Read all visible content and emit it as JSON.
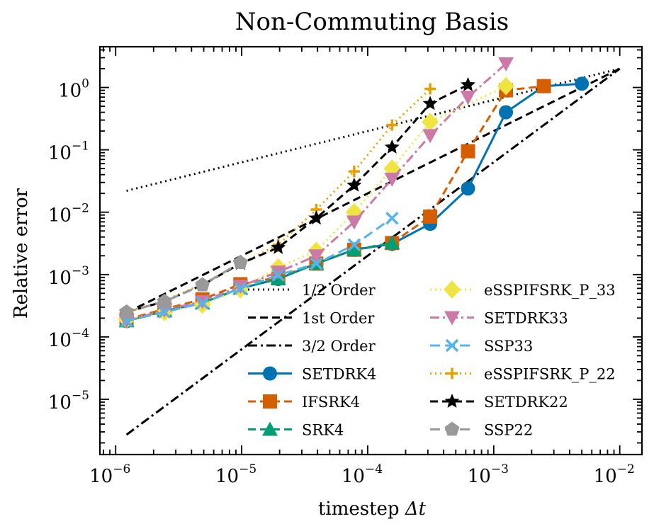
{
  "chart_data": {
    "type": "line",
    "title": "Non-Commuting Basis",
    "xlabel_prefix": "timestep ",
    "xlabel_var": "Δt",
    "ylabel": "Relative error",
    "xscale": "log",
    "yscale": "log",
    "xlim": [
      7.5e-07,
      0.015
    ],
    "ylim": [
      1.3e-06,
      4.5
    ],
    "grid": false,
    "legend_location": "lower-center, two columns",
    "xticks": [
      {
        "value": 1e-06,
        "base": "10",
        "exp": "−6"
      },
      {
        "value": 1e-05,
        "base": "10",
        "exp": "−5"
      },
      {
        "value": 0.0001,
        "base": "10",
        "exp": "−4"
      },
      {
        "value": 0.001,
        "base": "10",
        "exp": "−3"
      },
      {
        "value": 0.01,
        "base": "10",
        "exp": "−2"
      }
    ],
    "yticks": [
      {
        "value": 1e-05,
        "base": "10",
        "exp": "−5"
      },
      {
        "value": 0.0001,
        "base": "10",
        "exp": "−4"
      },
      {
        "value": 0.001,
        "base": "10",
        "exp": "−3"
      },
      {
        "value": 0.01,
        "base": "10",
        "exp": "−2"
      },
      {
        "value": 0.1,
        "base": "10",
        "exp": "−1"
      },
      {
        "value": 1,
        "base": "10",
        "exp": "0"
      }
    ],
    "series": [
      {
        "name": "1/2 Order",
        "color": "#000000",
        "dash": "2,5",
        "width": 3,
        "marker": "none",
        "x": [
          1.22e-06,
          0.01
        ],
        "y": [
          0.022,
          2.0
        ]
      },
      {
        "name": "1st Order",
        "color": "#000000",
        "dash": "11,6",
        "width": 3,
        "marker": "none",
        "x": [
          1.22e-06,
          0.01
        ],
        "y": [
          0.000244,
          2.0
        ]
      },
      {
        "name": "3/2 Order",
        "color": "#000000",
        "dash": "13,5,3,5",
        "width": 3,
        "marker": "none",
        "x": [
          1.22e-06,
          0.01
        ],
        "y": [
          2.7e-06,
          2.0
        ]
      },
      {
        "name": "SETDRK4",
        "color": "#0072B2",
        "dash": "",
        "width": 3,
        "marker": "circle",
        "x": [
          1.22e-06,
          2.44e-06,
          4.88e-06,
          9.77e-06,
          1.95e-05,
          3.91e-05,
          7.81e-05,
          0.000156,
          0.000313,
          0.000625,
          0.00125,
          0.0025,
          0.005
        ],
        "y": [
          0.00018,
          0.00026,
          0.00035,
          0.0006,
          0.00085,
          0.0015,
          0.0025,
          0.0031,
          0.0065,
          0.024,
          0.4,
          1.05,
          1.15
        ]
      },
      {
        "name": "IFSRK4",
        "color": "#D55E00",
        "dash": "11,6",
        "width": 3,
        "marker": "square",
        "x": [
          1.22e-06,
          2.44e-06,
          4.88e-06,
          9.77e-06,
          1.95e-05,
          3.91e-05,
          7.81e-05,
          0.000156,
          0.000313,
          0.000625,
          0.00125,
          0.0025
        ],
        "y": [
          0.00019,
          0.00028,
          0.0004,
          0.0007,
          0.0009,
          0.0015,
          0.0025,
          0.0032,
          0.0085,
          0.095,
          0.9,
          1.05
        ]
      },
      {
        "name": "SRK4",
        "color": "#009E73",
        "dash": "11,6",
        "width": 3,
        "marker": "triangle",
        "x": [
          1.22e-06,
          2.44e-06,
          4.88e-06,
          9.77e-06,
          1.95e-05,
          3.91e-05,
          7.81e-05,
          0.000156
        ],
        "y": [
          0.00018,
          0.00026,
          0.00035,
          0.0006,
          0.00085,
          0.0015,
          0.0025,
          0.0032
        ]
      },
      {
        "name": "eSSPIFSRK_P_33",
        "color": "#F0E442",
        "dash": "2,5",
        "width": 3,
        "marker": "diamond",
        "x": [
          1.22e-06,
          2.44e-06,
          4.88e-06,
          9.77e-06,
          1.95e-05,
          3.91e-05,
          7.81e-05,
          0.000156,
          0.000313,
          0.00125
        ],
        "y": [
          0.00019,
          0.00025,
          0.00033,
          0.00058,
          0.0013,
          0.0024,
          0.01,
          0.05,
          0.28,
          1.05
        ]
      },
      {
        "name": "SETDRK33",
        "color": "#CC79A7",
        "dash": "13,5,3,5",
        "width": 3,
        "marker": "triangle-down",
        "x": [
          1.22e-06,
          2.44e-06,
          4.88e-06,
          9.77e-06,
          1.95e-05,
          3.91e-05,
          7.81e-05,
          0.000156,
          0.000313,
          0.000625,
          0.00125
        ],
        "y": [
          0.00018,
          0.00027,
          0.00037,
          0.00065,
          0.0011,
          0.002,
          0.007,
          0.034,
          0.17,
          0.7,
          2.4
        ]
      },
      {
        "name": "SSP33",
        "color": "#56B4E9",
        "dash": "14,7",
        "width": 3,
        "marker": "x",
        "x": [
          1.22e-06,
          2.44e-06,
          4.88e-06,
          9.77e-06,
          1.95e-05,
          3.91e-05,
          7.81e-05,
          0.000156
        ],
        "y": [
          0.00018,
          0.00025,
          0.00035,
          0.0006,
          0.00098,
          0.0015,
          0.003,
          0.008
        ]
      },
      {
        "name": "eSSPIFSRK_P_22",
        "color": "#E69F00",
        "dash": "2,5",
        "width": 3,
        "marker": "plus",
        "x": [
          1.22e-06,
          2.44e-06,
          4.88e-06,
          9.77e-06,
          1.95e-05,
          3.91e-05,
          7.81e-05,
          0.000156,
          0.000313
        ],
        "y": [
          0.00025,
          0.00038,
          0.0007,
          0.0015,
          0.003,
          0.011,
          0.045,
          0.25,
          0.95
        ]
      },
      {
        "name": "SETDRK22",
        "color": "#000000",
        "dash": "11,6",
        "width": 3,
        "marker": "star",
        "x": [
          1.22e-06,
          2.44e-06,
          4.88e-06,
          9.77e-06,
          1.95e-05,
          3.91e-05,
          7.81e-05,
          0.000156,
          0.000313,
          0.000625
        ],
        "y": [
          0.00025,
          0.00037,
          0.00068,
          0.0015,
          0.0027,
          0.008,
          0.027,
          0.11,
          0.55,
          1.1
        ]
      },
      {
        "name": "SSP22",
        "color": "#999999",
        "dash": "14,7",
        "width": 3,
        "marker": "pentagon",
        "x": [
          1.22e-06,
          2.44e-06,
          4.88e-06,
          9.77e-06
        ],
        "y": [
          0.00025,
          0.00037,
          0.00068,
          0.00155
        ]
      }
    ]
  }
}
